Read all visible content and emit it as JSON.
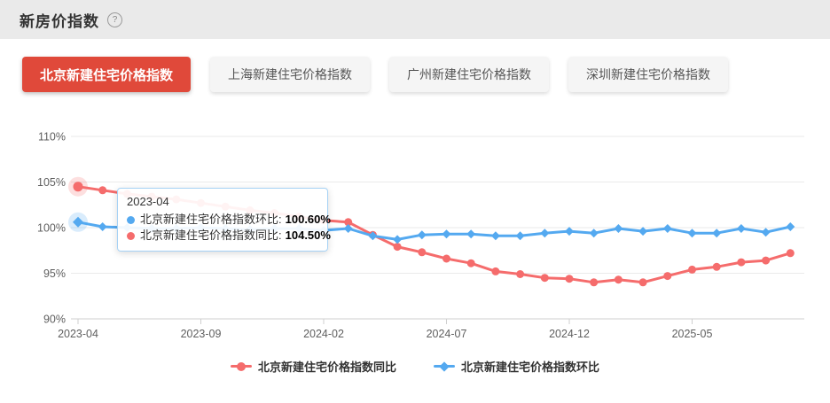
{
  "header": {
    "title": "新房价指数",
    "help_icon": "?"
  },
  "tabs": [
    {
      "label": "北京新建住宅价格指数",
      "active": true
    },
    {
      "label": "上海新建住宅价格指数",
      "active": false
    },
    {
      "label": "广州新建住宅价格指数",
      "active": false
    },
    {
      "label": "深圳新建住宅价格指数",
      "active": false
    }
  ],
  "colors": {
    "accent_red": "#e0493a",
    "series_yoy": "#f56c6c",
    "series_mom": "#54a9f0",
    "tooltip_border": "#a6d2f5",
    "grid_line": "#eaeaea",
    "axis_line": "#cfcfcf",
    "axis_text": "#5f5f5f"
  },
  "tooltip": {
    "date": "2023-04",
    "rows": [
      {
        "label": "北京新建住宅价格指数环比:",
        "value": "100.60%",
        "series": "mom"
      },
      {
        "label": "北京新建住宅价格指数同比:",
        "value": "104.50%",
        "series": "yoy"
      }
    ]
  },
  "legend": [
    {
      "label": "北京新建住宅价格指数同比",
      "marker": "circle",
      "series": "yoy"
    },
    {
      "label": "北京新建住宅价格指数环比",
      "marker": "diamond",
      "series": "mom"
    }
  ],
  "chart_data": {
    "type": "line",
    "title": "北京新建住宅价格指数",
    "x": [
      "2023-04",
      "2023-05",
      "2023-06",
      "2023-07",
      "2023-08",
      "2023-09",
      "2023-10",
      "2023-11",
      "2023-12",
      "2024-01",
      "2024-02",
      "2024-03",
      "2024-04",
      "2024-05",
      "2024-06",
      "2024-07",
      "2024-08",
      "2024-09",
      "2024-10",
      "2024-11",
      "2024-12",
      "2025-01",
      "2025-02",
      "2025-03",
      "2025-04",
      "2025-05",
      "2025-06",
      "2025-07",
      "2025-08",
      "2025-09"
    ],
    "series": [
      {
        "name": "北京新建住宅价格指数同比",
        "marker": "circle",
        "color": "#f56c6c",
        "values": [
          104.5,
          104.1,
          103.7,
          103.4,
          103.1,
          102.7,
          102.3,
          101.9,
          101.6,
          101.2,
          100.8,
          100.6,
          99.2,
          97.9,
          97.3,
          96.6,
          96.1,
          95.2,
          94.9,
          94.5,
          94.4,
          94.0,
          94.3,
          94.0,
          94.7,
          95.4,
          95.7,
          96.2,
          96.4,
          97.2
        ]
      },
      {
        "name": "北京新建住宅价格指数环比",
        "marker": "diamond",
        "color": "#54a9f0",
        "values": [
          100.6,
          100.1,
          100.0,
          99.9,
          99.9,
          100.0,
          99.9,
          99.8,
          99.9,
          99.9,
          99.7,
          99.9,
          99.1,
          98.7,
          99.2,
          99.3,
          99.3,
          99.1,
          99.1,
          99.4,
          99.6,
          99.4,
          99.9,
          99.6,
          99.9,
          99.4,
          99.4,
          99.9,
          99.5,
          100.1
        ]
      }
    ],
    "ylim": [
      90,
      110
    ],
    "yticks": [
      110,
      105,
      100,
      95,
      90
    ],
    "ytick_format": "percent",
    "xticks_shown": [
      "2023-04",
      "2023-09",
      "2024-02",
      "2024-07",
      "2024-12",
      "2025-05"
    ],
    "highlight_index": 0,
    "grid": true,
    "legend_position": "bottom"
  }
}
